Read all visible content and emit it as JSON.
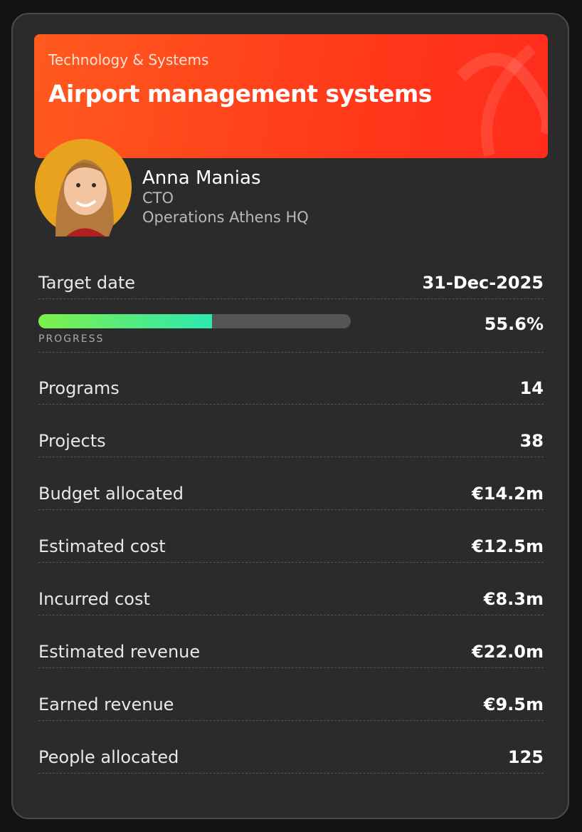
{
  "header": {
    "category": "Technology & Systems",
    "title": "Airport management systems"
  },
  "person": {
    "name": "Anna Manias",
    "role": "CTO",
    "location": "Operations Athens HQ"
  },
  "target_date": {
    "label": "Target date",
    "value": "31-Dec-2025"
  },
  "progress": {
    "label": "PROGRESS",
    "value": 55.6,
    "value_label": "55.6%"
  },
  "rows": [
    {
      "label": "Programs",
      "value": "14"
    },
    {
      "label": "Projects",
      "value": "38"
    },
    {
      "label": "Budget allocated",
      "value": "€14.2m"
    },
    {
      "label": "Estimated cost",
      "value": "€12.5m"
    },
    {
      "label": "Incurred cost",
      "value": "€8.3m"
    },
    {
      "label": "Estimated revenue",
      "value": "€22.0m"
    },
    {
      "label": "Earned revenue",
      "value": "€9.5m"
    },
    {
      "label": "People allocated",
      "value": "125"
    }
  ]
}
